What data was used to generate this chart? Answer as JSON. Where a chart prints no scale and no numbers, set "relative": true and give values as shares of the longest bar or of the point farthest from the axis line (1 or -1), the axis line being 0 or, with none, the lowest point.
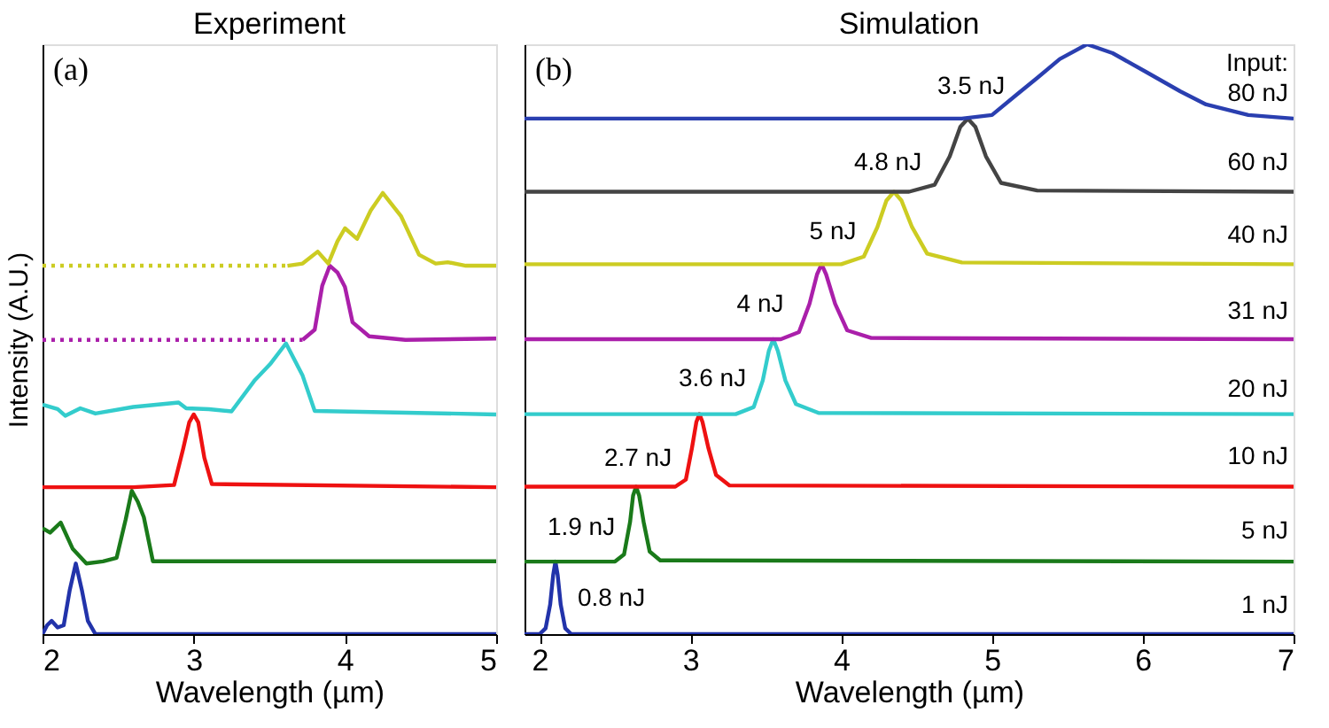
{
  "chart_data": [
    {
      "type": "line",
      "title": "Experiment",
      "xlabel": "Wavelength (µm)",
      "ylabel": "Intensity (A.U.)",
      "relative": true,
      "xlim": [
        2,
        5
      ],
      "xticks": [
        2,
        3,
        4,
        5
      ],
      "tick_labels": "x",
      "grid": false,
      "line_style": "solid",
      "annotations": [
        "(a)"
      ],
      "series": [
        {
          "color": "#2233aa",
          "x": [
            2,
            2.03,
            2.06,
            2.1,
            2.14,
            2.18,
            2.22,
            2.26,
            2.3,
            2.35,
            5
          ],
          "values": [
            0,
            0.02,
            0.03,
            0.015,
            0.02,
            0.1,
            0.16,
            0.1,
            0.03,
            0,
            0
          ]
        },
        {
          "color": "#1a7a1a",
          "x": [
            2,
            2.05,
            2.12,
            2.2,
            2.29,
            2.4,
            2.49,
            2.55,
            2.59,
            2.63,
            2.67,
            2.73,
            5
          ],
          "values": [
            0.24,
            0.23,
            0.253,
            0.193,
            0.16,
            0.165,
            0.173,
            0.26,
            0.325,
            0.3,
            0.265,
            0.165,
            0.165
          ]
        },
        {
          "color": "#ee1111",
          "x": [
            2,
            2.6,
            2.87,
            2.93,
            2.97,
            3.0,
            3.03,
            3.07,
            3.12,
            5
          ],
          "values": [
            0.333,
            0.333,
            0.338,
            0.42,
            0.48,
            0.498,
            0.48,
            0.4,
            0.34,
            0.333
          ]
        },
        {
          "color": "#33cccc",
          "x": [
            2,
            2.1,
            2.15,
            2.25,
            2.35,
            2.6,
            2.9,
            2.95,
            3.1,
            3.25,
            3.4,
            3.51,
            3.61,
            3.72,
            3.8,
            5
          ],
          "values": [
            0.52,
            0.51,
            0.495,
            0.512,
            0.5,
            0.515,
            0.525,
            0.512,
            0.51,
            0.505,
            0.574,
            0.614,
            0.659,
            0.586,
            0.506,
            0.498
          ]
        },
        {
          "color": "#aa1faa",
          "line_style": "dotted",
          "x": [
            2,
            3.72
          ],
          "values": [
            0.667,
            0.667
          ]
        },
        {
          "color": "#aa1faa",
          "x": [
            3.72,
            3.8,
            3.85,
            3.9,
            3.95,
            4.0,
            4.05,
            4.16,
            4.4,
            5
          ],
          "values": [
            0.667,
            0.69,
            0.79,
            0.835,
            0.82,
            0.787,
            0.707,
            0.675,
            0.667,
            0.67
          ]
        },
        {
          "color": "#cccc22",
          "line_style": "dotted",
          "x": [
            2,
            3.62
          ],
          "values": [
            0.835,
            0.835
          ]
        },
        {
          "color": "#cccc22",
          "x": [
            3.62,
            3.72,
            3.82,
            3.89,
            3.95,
            4.0,
            4.08,
            4.17,
            4.25,
            4.37,
            4.49,
            4.6,
            4.68,
            4.8,
            5
          ],
          "values": [
            0.835,
            0.84,
            0.867,
            0.84,
            0.89,
            0.92,
            0.896,
            0.96,
            1.0,
            0.948,
            0.86,
            0.84,
            0.843,
            0.835,
            0.835
          ]
        }
      ]
    },
    {
      "type": "line",
      "title": "Simulation",
      "xlabel": "Wavelength (µm)",
      "relative": true,
      "xlim": [
        1.9,
        7
      ],
      "xticks": [
        2,
        3,
        4,
        5,
        6,
        7
      ],
      "tick_labels": "x",
      "grid": false,
      "line_style": "solid",
      "annotations": [
        "(b)",
        "3.5 nJ",
        "4.8 nJ",
        "5 nJ",
        "4 nJ",
        "3.6 nJ",
        "2.7 nJ",
        "1.9 nJ",
        "0.8 nJ",
        "Input:",
        "80 nJ",
        "60 nJ",
        "40 nJ",
        "31 nJ",
        "20 nJ",
        "10 nJ",
        "5 nJ",
        "1 nJ"
      ],
      "series": [
        {
          "color": "#2233aa",
          "x": [
            1.9,
            2.0,
            2.04,
            2.07,
            2.09,
            2.105,
            2.12,
            2.14,
            2.17,
            2.21,
            7
          ],
          "values": [
            0,
            0,
            0.01,
            0.05,
            0.1,
            0.123,
            0.1,
            0.05,
            0.01,
            0,
            0
          ]
        },
        {
          "color": "#1a7a1a",
          "x": [
            1.9,
            2.5,
            2.56,
            2.6,
            2.62,
            2.64,
            2.66,
            2.69,
            2.73,
            2.8,
            7
          ],
          "values": [
            0.123,
            0.123,
            0.135,
            0.19,
            0.235,
            0.25,
            0.235,
            0.19,
            0.14,
            0.125,
            0.123
          ]
        },
        {
          "color": "#ee1111",
          "x": [
            1.9,
            2.9,
            2.97,
            3.01,
            3.04,
            3.06,
            3.08,
            3.12,
            3.17,
            3.26,
            7
          ],
          "values": [
            0.25,
            0.25,
            0.262,
            0.315,
            0.36,
            0.373,
            0.36,
            0.315,
            0.27,
            0.252,
            0.25
          ]
        },
        {
          "color": "#33cccc",
          "x": [
            1.9,
            3.3,
            3.42,
            3.48,
            3.52,
            3.55,
            3.58,
            3.63,
            3.7,
            3.85,
            7
          ],
          "values": [
            0.373,
            0.373,
            0.385,
            0.43,
            0.48,
            0.5,
            0.48,
            0.43,
            0.39,
            0.375,
            0.373
          ]
        },
        {
          "color": "#aa1faa",
          "x": [
            1.9,
            3.6,
            3.72,
            3.79,
            3.84,
            3.87,
            3.9,
            3.96,
            4.04,
            4.2,
            7
          ],
          "values": [
            0.5,
            0.5,
            0.512,
            0.56,
            0.61,
            0.627,
            0.61,
            0.56,
            0.515,
            0.502,
            0.5
          ]
        },
        {
          "color": "#cccc22",
          "x": [
            1.9,
            4.0,
            4.15,
            4.24,
            4.3,
            4.35,
            4.4,
            4.47,
            4.57,
            4.8,
            7
          ],
          "values": [
            0.627,
            0.627,
            0.64,
            0.69,
            0.735,
            0.75,
            0.735,
            0.69,
            0.645,
            0.63,
            0.627
          ]
        },
        {
          "color": "#444444",
          "x": [
            1.9,
            4.45,
            4.62,
            4.72,
            4.79,
            4.84,
            4.89,
            4.96,
            5.06,
            5.3,
            7
          ],
          "values": [
            0.75,
            0.75,
            0.762,
            0.81,
            0.86,
            0.874,
            0.86,
            0.81,
            0.765,
            0.752,
            0.75
          ]
        },
        {
          "color": "#2a3fb0",
          "x": [
            1.9,
            4.8,
            5.0,
            5.17,
            5.3,
            5.45,
            5.63,
            5.8,
            6.03,
            6.25,
            6.42,
            6.7,
            7
          ],
          "values": [
            0.874,
            0.874,
            0.88,
            0.916,
            0.943,
            0.975,
            1,
            0.985,
            0.952,
            0.92,
            0.898,
            0.88,
            0.874
          ]
        }
      ]
    }
  ]
}
